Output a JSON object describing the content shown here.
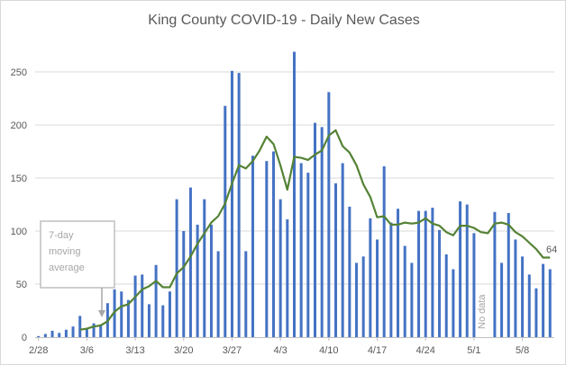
{
  "chart_data": {
    "type": "bar",
    "title": "King County COVID-19 - Daily New Cases",
    "xlabel": "",
    "ylabel": "",
    "ylim": [
      0,
      270
    ],
    "yticks": [
      0,
      50,
      100,
      150,
      200,
      250
    ],
    "grid": true,
    "xtick_labels": [
      "2/28",
      "3/6",
      "3/13",
      "3/20",
      "3/27",
      "4/3",
      "4/10",
      "4/17",
      "4/24",
      "5/1",
      "5/8"
    ],
    "dates": [
      "2/28",
      "2/29",
      "3/1",
      "3/2",
      "3/3",
      "3/4",
      "3/5",
      "3/6",
      "3/7",
      "3/8",
      "3/9",
      "3/10",
      "3/11",
      "3/12",
      "3/13",
      "3/14",
      "3/15",
      "3/16",
      "3/17",
      "3/18",
      "3/19",
      "3/20",
      "3/21",
      "3/22",
      "3/23",
      "3/24",
      "3/25",
      "3/26",
      "3/27",
      "3/28",
      "3/29",
      "3/30",
      "3/31",
      "4/1",
      "4/2",
      "4/3",
      "4/4",
      "4/5",
      "4/6",
      "4/7",
      "4/8",
      "4/9",
      "4/10",
      "4/11",
      "4/12",
      "4/13",
      "4/14",
      "4/15",
      "4/16",
      "4/17",
      "4/18",
      "4/19",
      "4/20",
      "4/21",
      "4/22",
      "4/23",
      "4/24",
      "4/25",
      "4/26",
      "4/27",
      "4/28",
      "4/29",
      "4/30",
      "5/1",
      "5/2",
      "5/3",
      "5/4",
      "5/5",
      "5/6",
      "5/7",
      "5/8",
      "5/9",
      "5/10",
      "5/11",
      "5/12"
    ],
    "series": [
      {
        "name": "Daily new cases",
        "type": "bar",
        "color": "#4472c4",
        "values": [
          1,
          3,
          6,
          4,
          7,
          10,
          20,
          8,
          13,
          12,
          32,
          45,
          43,
          35,
          58,
          59,
          31,
          68,
          30,
          43,
          130,
          100,
          141,
          106,
          130,
          106,
          81,
          218,
          251,
          249,
          81,
          171,
          null,
          166,
          175,
          130,
          111,
          269,
          164,
          155,
          202,
          198,
          231,
          145,
          164,
          123,
          70,
          76,
          112,
          92,
          161,
          108,
          121,
          86,
          70,
          119,
          119,
          122,
          101,
          78,
          64,
          128,
          125,
          98,
          null,
          null,
          118,
          70,
          117,
          92,
          76,
          59,
          46,
          69,
          64
        ]
      },
      {
        "name": "7-day moving average",
        "type": "line",
        "color": "#548235",
        "values": [
          null,
          null,
          null,
          null,
          null,
          null,
          7,
          8,
          10,
          11,
          15,
          24,
          29,
          31,
          38,
          45,
          48,
          53,
          47,
          47,
          60,
          66,
          76,
          88,
          98,
          108,
          114,
          126,
          145,
          162,
          159,
          166,
          176,
          189,
          182,
          162,
          139,
          170,
          169,
          167,
          172,
          176,
          190,
          195,
          180,
          174,
          162,
          144,
          132,
          113,
          114,
          106,
          106,
          108,
          107,
          108,
          112,
          107,
          105,
          99,
          96,
          105,
          105,
          103,
          99,
          98,
          107,
          108,
          106,
          99,
          95,
          89,
          83,
          75,
          75
        ]
      }
    ],
    "annotations": {
      "moving_average_note": [
        "7-day",
        "moving",
        "average"
      ],
      "no_data": "No data",
      "last_value_label": "64"
    }
  }
}
